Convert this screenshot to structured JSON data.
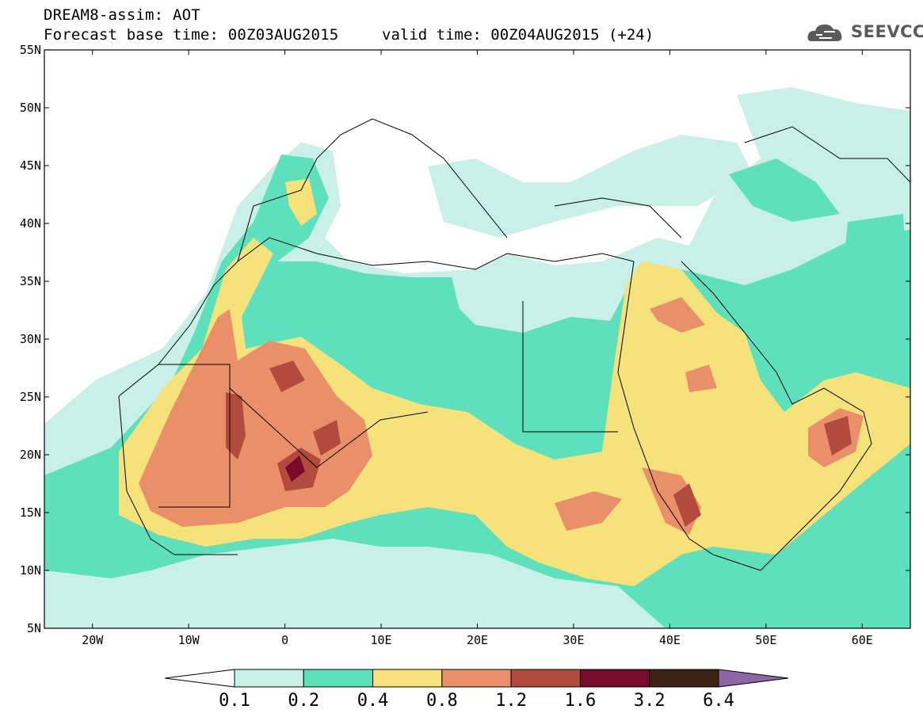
{
  "header": {
    "title_line1": "DREAM8-assim: AOT",
    "title_line2": "Forecast base time: 00Z03AUG2015",
    "valid_time": "valid time: 00Z04AUG2015 (+24)",
    "logo_text": "SEEVCCC",
    "logo_icon": "cloud-logo-icon"
  },
  "map": {
    "lon_range": [
      -25,
      65
    ],
    "lat_range": [
      5,
      55
    ],
    "lat_labels": [
      "55N",
      "50N",
      "45N",
      "40N",
      "35N",
      "30N",
      "25N",
      "20N",
      "15N",
      "10N",
      "5N"
    ],
    "lat_values": [
      55,
      50,
      45,
      40,
      35,
      30,
      25,
      20,
      15,
      10,
      5
    ],
    "lon_labels": [
      "20W",
      "10W",
      "0",
      "10E",
      "20E",
      "30E",
      "40E",
      "50E",
      "60E"
    ],
    "lon_values": [
      -20,
      -10,
      0,
      10,
      20,
      30,
      40,
      50,
      60
    ]
  },
  "colorbar": {
    "levels": [
      "0.1",
      "0.2",
      "0.4",
      "0.8",
      "1.2",
      "1.6",
      "3.2",
      "6.4"
    ],
    "colors": [
      "#ffffff",
      "#c8f0e8",
      "#5fe0bc",
      "#f5e27a",
      "#e9906a",
      "#b24a3e",
      "#7a0a2c",
      "#3d2315",
      "#8e66a8"
    ]
  }
}
